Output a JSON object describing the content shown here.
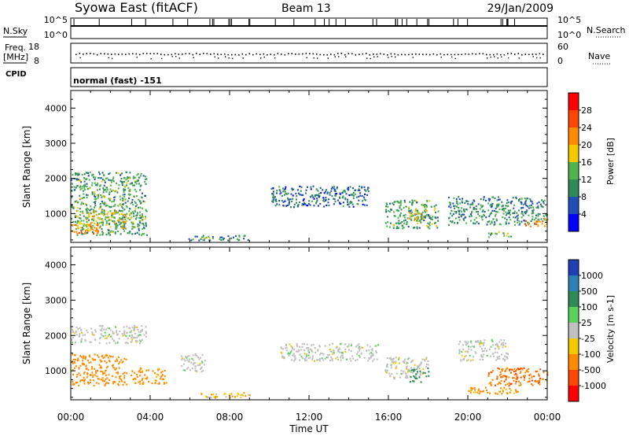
{
  "header": {
    "station": "Syowa East (fitACF)",
    "beam": "Beam 13",
    "date": "29/Jan/2009"
  },
  "top_panels": {
    "nsky_label": "N.Sky",
    "nsky_ticks": [
      "10^5",
      "10^0"
    ],
    "nsearch_label": "N.Search",
    "nsearch_ticks": [
      "10^5",
      "10^0"
    ],
    "freq_label_1": "Freq.",
    "freq_label_2": "[MHz]",
    "freq_ticks": [
      "18",
      "8"
    ],
    "nave_label": "Nave",
    "nave_ticks": [
      "60",
      "0"
    ],
    "cpid_label": "CPID",
    "cpid_text": "normal (fast) -151"
  },
  "chart_data": [
    {
      "type": "heatmap",
      "quantity": "Power",
      "ylabel": "Slant Range [km]",
      "xlabel": "",
      "ylim": [
        180,
        4500
      ],
      "yticks": [
        "1000",
        "2000",
        "3000",
        "4000"
      ],
      "colorbar_label": "Power [dB]",
      "colorbar_ticks": [
        "4",
        "8",
        "12",
        "16",
        "20",
        "24",
        "28"
      ],
      "colorbar_range": [
        0,
        32
      ],
      "colorbar_colors": [
        "#0000ff",
        "#1f4fb4",
        "#2e8b57",
        "#4fb44f",
        "#f5c800",
        "#ff8c00",
        "#ff4500",
        "#ff0000"
      ],
      "echo_regions": [
        {
          "t0": 0.0,
          "t1": 3.8,
          "r0": 400,
          "r1": 2200,
          "level": 12
        },
        {
          "t0": 0.3,
          "t1": 2.8,
          "r0": 600,
          "r1": 1100,
          "level": 18
        },
        {
          "t0": 0.0,
          "t1": 1.5,
          "r0": 450,
          "r1": 700,
          "level": 22
        },
        {
          "t0": 5.8,
          "t1": 9.0,
          "r0": 250,
          "r1": 400,
          "level": 10
        },
        {
          "t0": 6.7,
          "t1": 7.1,
          "r0": 280,
          "r1": 380,
          "level": 20
        },
        {
          "t0": 15.8,
          "t1": 18.5,
          "r0": 600,
          "r1": 1400,
          "level": 12
        },
        {
          "t0": 17.0,
          "t1": 17.9,
          "r0": 800,
          "r1": 1150,
          "level": 18
        },
        {
          "t0": 19.0,
          "t1": 24.0,
          "r0": 700,
          "r1": 1500,
          "level": 10
        },
        {
          "t0": 22.8,
          "t1": 24.0,
          "r0": 650,
          "r1": 900,
          "level": 22
        },
        {
          "t0": 21.0,
          "t1": 22.2,
          "r0": 350,
          "r1": 500,
          "level": 14
        },
        {
          "t0": 10.0,
          "t1": 15.0,
          "r0": 1200,
          "r1": 1800,
          "level": 8
        }
      ]
    },
    {
      "type": "heatmap",
      "quantity": "Velocity",
      "ylabel": "Slant Range [km]",
      "xlabel": "Time UT",
      "ylim": [
        180,
        4500
      ],
      "yticks": [
        "1000",
        "2000",
        "3000",
        "4000"
      ],
      "xticks": [
        "00:00",
        "04:00",
        "08:00",
        "12:00",
        "16:00",
        "20:00",
        "00:00"
      ],
      "xlim": [
        0,
        24
      ],
      "colorbar_label": "Velocity [m s-1]",
      "colorbar_ticks": [
        "1000",
        "500",
        "100",
        "25",
        "-25",
        "-100",
        "-500",
        "-1000"
      ],
      "colorbar_colors": [
        "#1f3fb4",
        "#2e7fb4",
        "#2e8b57",
        "#5cd05c",
        "#c0c0c0",
        "#f5c800",
        "#ff8c00",
        "#ff4500",
        "#ff0000"
      ],
      "echo_regions": [
        {
          "t0": 0.0,
          "t1": 3.8,
          "r0": 1800,
          "r1": 2300,
          "level": 0
        },
        {
          "t0": 0.0,
          "t1": 2.8,
          "r0": 600,
          "r1": 1500,
          "level": -300
        },
        {
          "t0": 3.0,
          "t1": 4.8,
          "r0": 650,
          "r1": 1100,
          "level": -200
        },
        {
          "t0": 5.5,
          "t1": 6.8,
          "r0": 1000,
          "r1": 1500,
          "level": 0
        },
        {
          "t0": 6.5,
          "t1": 9.0,
          "r0": 250,
          "r1": 400,
          "level": -60
        },
        {
          "t0": 10.5,
          "t1": 15.5,
          "r0": 1300,
          "r1": 1800,
          "level": 0
        },
        {
          "t0": 15.8,
          "t1": 18.0,
          "r0": 800,
          "r1": 1400,
          "level": 0
        },
        {
          "t0": 17.0,
          "t1": 18.0,
          "r0": 700,
          "r1": 1100,
          "level": 300
        },
        {
          "t0": 19.5,
          "t1": 22.0,
          "r0": 1300,
          "r1": 1900,
          "level": 0
        },
        {
          "t0": 21.0,
          "t1": 24.0,
          "r0": 600,
          "r1": 1100,
          "level": -400
        },
        {
          "t0": 20.0,
          "t1": 22.5,
          "r0": 350,
          "r1": 550,
          "level": -150
        }
      ]
    }
  ]
}
